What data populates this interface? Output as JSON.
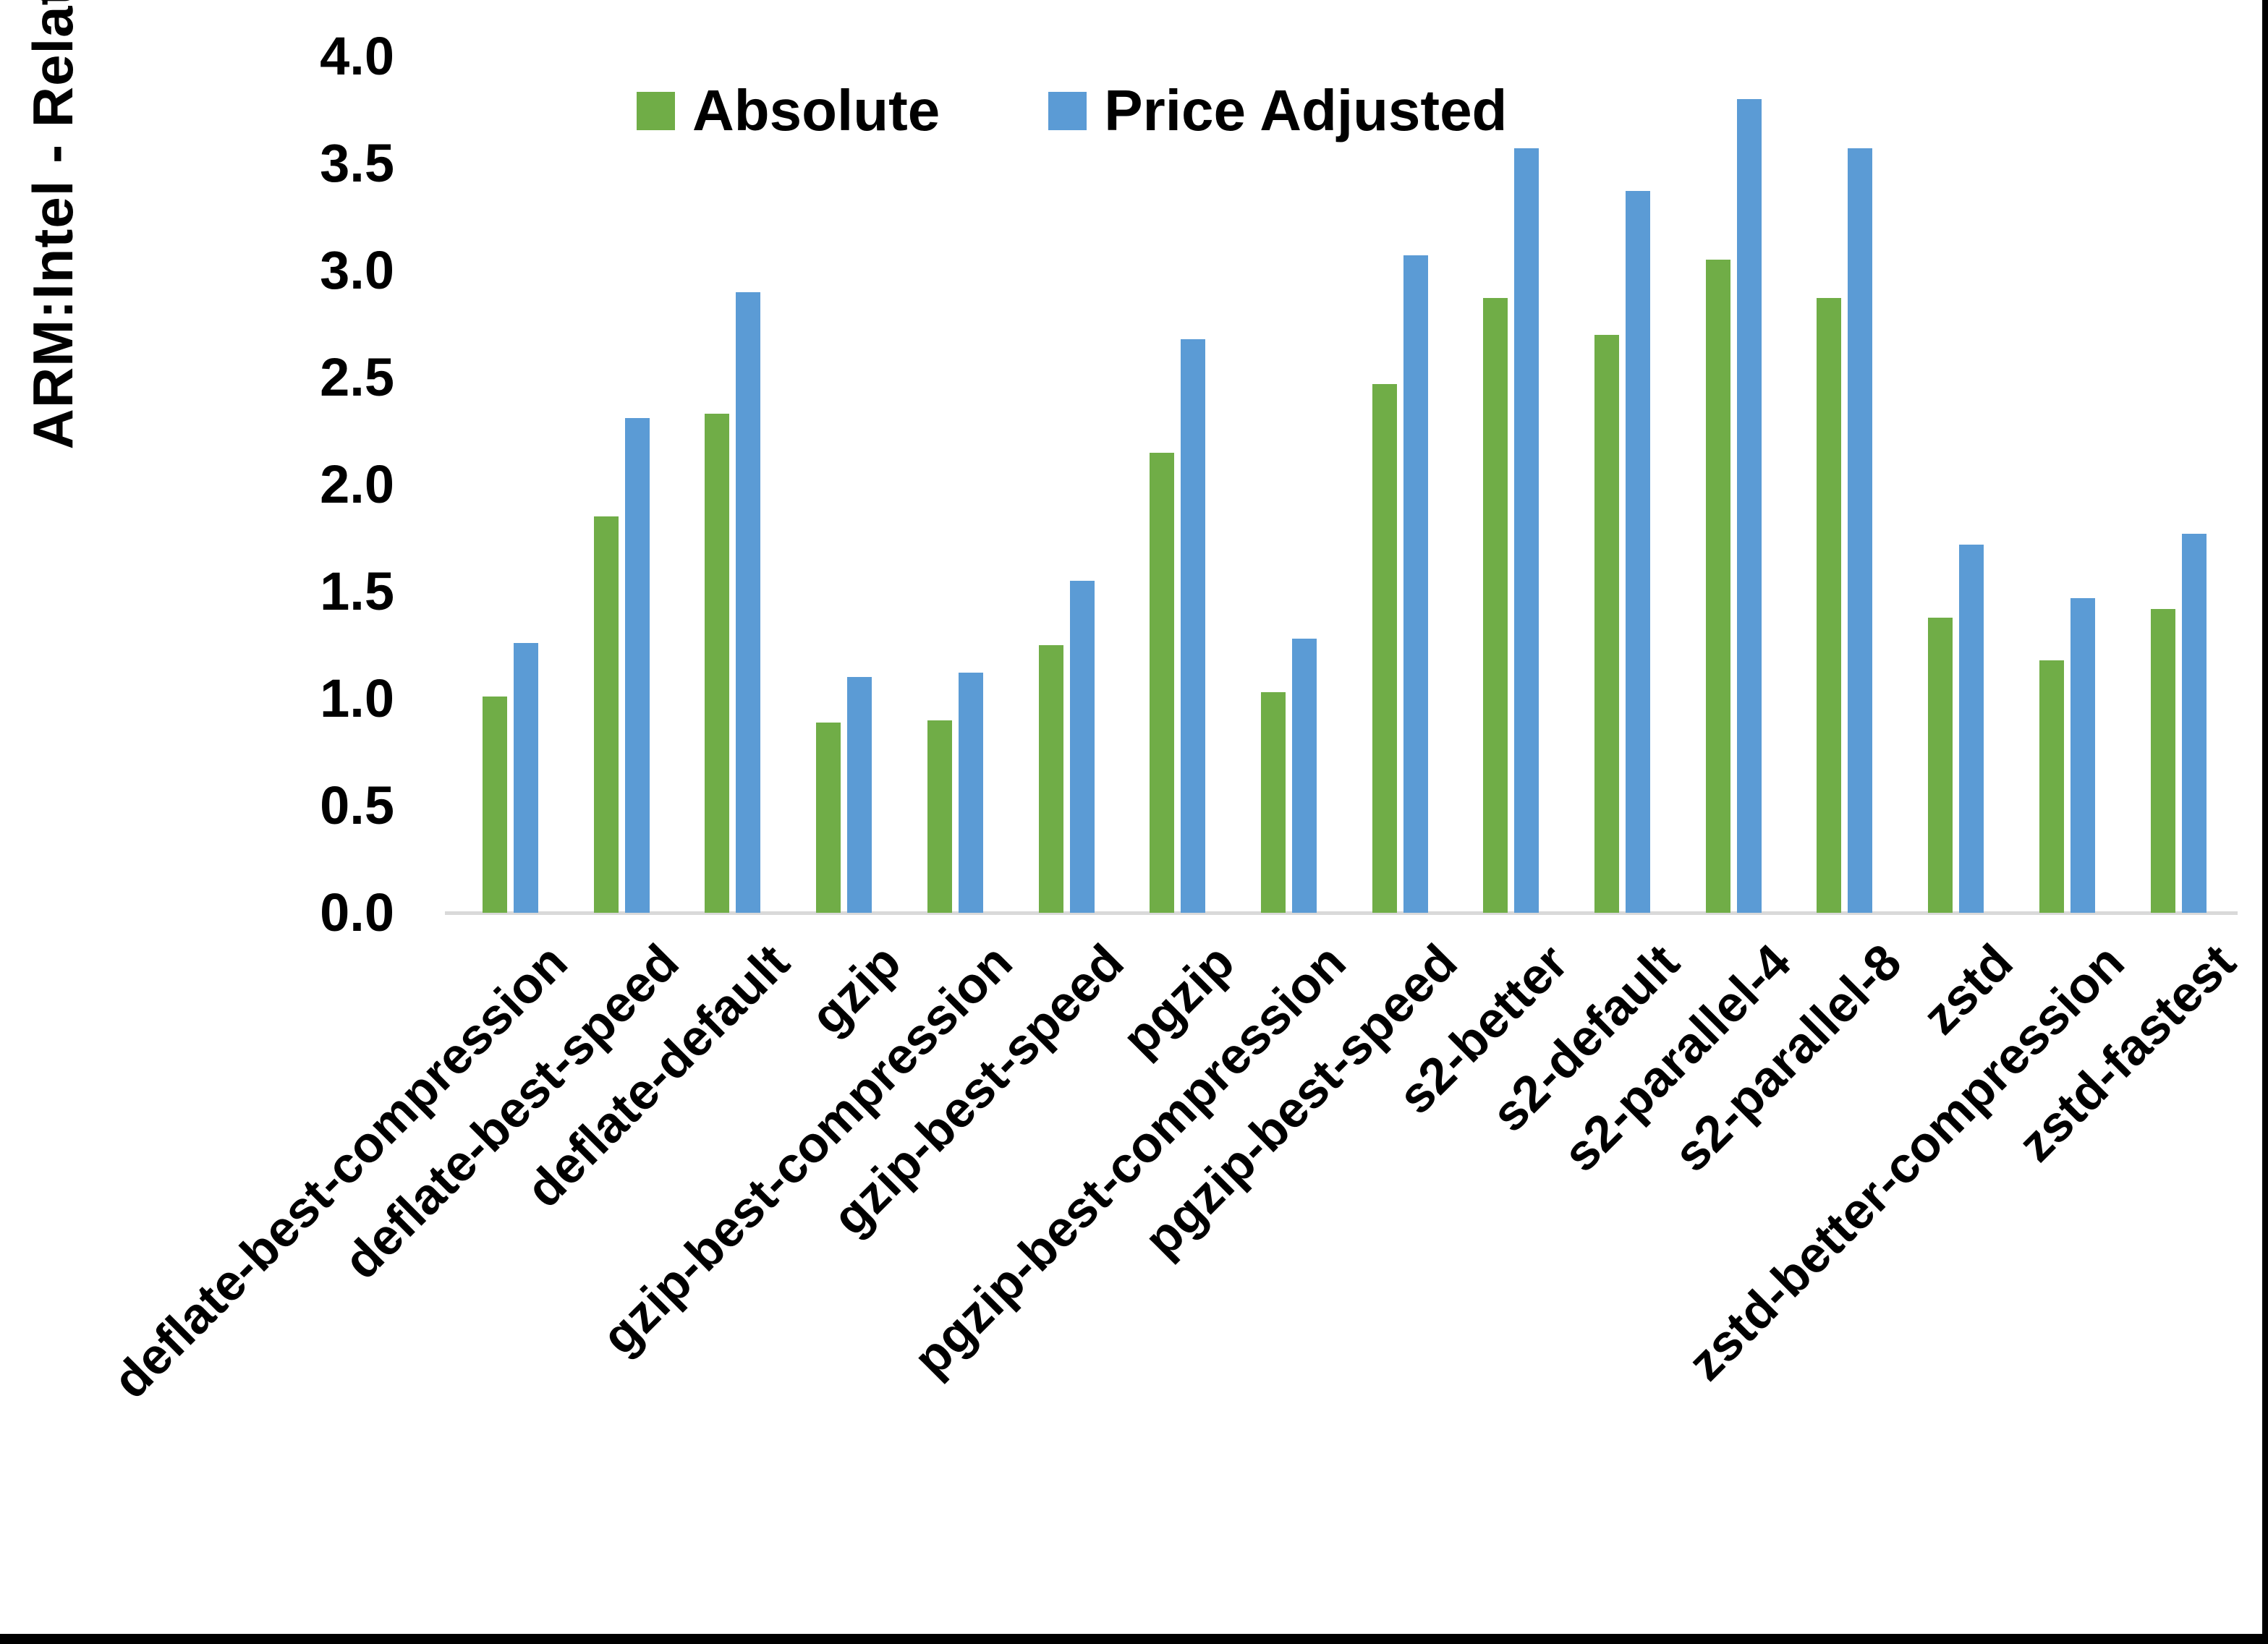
{
  "chart_data": {
    "type": "bar",
    "title": "",
    "ylabel": "ARM:Intel - Relative Performance",
    "xlabel": "",
    "ylim": [
      0.0,
      4.0
    ],
    "ytick_step": 0.5,
    "grid": false,
    "legend_position": "top-center",
    "categories": [
      "deflate-best-compression",
      "deflate-best-speed",
      "deflate-default",
      "gzip",
      "gzip-best-compression",
      "gzip-best-speed",
      "pgzip",
      "pgzip-best-compression",
      "pgzip-best-speed",
      "s2-better",
      "s2-default",
      "s2-parallel-4",
      "s2-parallel-8",
      "zstd",
      "zstd-better-compression",
      "zstd-fastest"
    ],
    "series": [
      {
        "name": "Absolute",
        "color": "#70ad47",
        "values": [
          1.01,
          1.85,
          2.33,
          0.89,
          0.9,
          1.25,
          2.15,
          1.03,
          2.47,
          2.87,
          2.7,
          3.05,
          2.87,
          1.38,
          1.18,
          1.42
        ]
      },
      {
        "name": "Price Adjusted",
        "color": "#5b9bd5",
        "values": [
          1.26,
          2.31,
          2.9,
          1.1,
          1.12,
          1.55,
          2.68,
          1.28,
          3.07,
          3.57,
          3.37,
          3.8,
          3.57,
          1.72,
          1.47,
          1.77
        ]
      }
    ],
    "axis_line_color": "#d9d9d9"
  }
}
